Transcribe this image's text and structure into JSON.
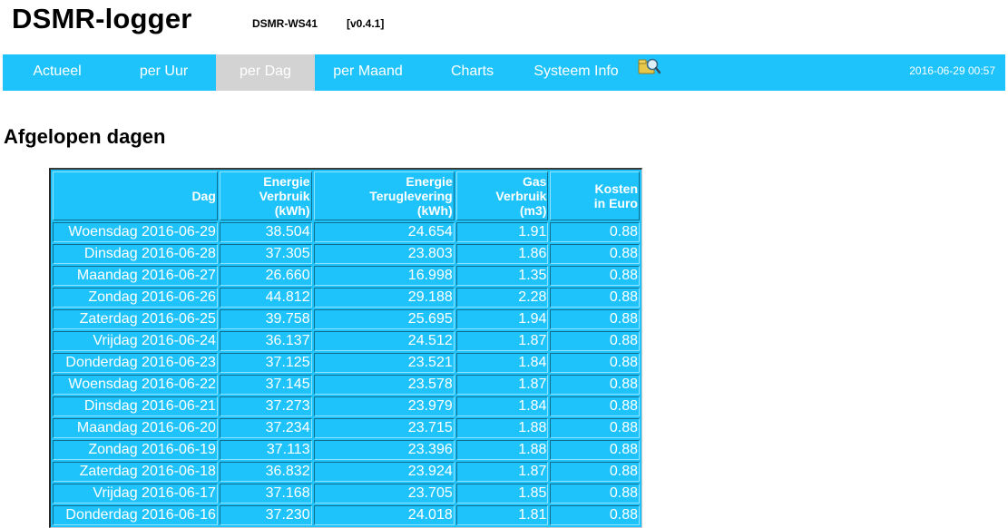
{
  "header": {
    "title": "DSMR-logger",
    "host": "DSMR-WS41",
    "version": "[v0.4.1]"
  },
  "nav": {
    "items": [
      {
        "label": "Actueel",
        "active": false
      },
      {
        "label": "per Uur",
        "active": false
      },
      {
        "label": "per Dag",
        "active": true
      },
      {
        "label": "per Maand",
        "active": false
      },
      {
        "label": "Charts",
        "active": false
      },
      {
        "label": "Systeem Info",
        "active": false
      }
    ],
    "icon": "file-search-icon",
    "datetime": "2016-06-29 00:57"
  },
  "main": {
    "title": "Afgelopen dagen",
    "table": {
      "headers": [
        {
          "lines": [
            "Dag"
          ]
        },
        {
          "lines": [
            "Energie",
            "Verbruik",
            "(kWh)"
          ]
        },
        {
          "lines": [
            "Energie",
            "Teruglevering",
            "(kWh)"
          ]
        },
        {
          "lines": [
            "Gas",
            "Verbruik",
            "(m3)"
          ]
        },
        {
          "lines": [
            "Kosten",
            "in Euro"
          ]
        }
      ],
      "rows": [
        [
          "Woensdag 2016-06-29",
          "38.504",
          "24.654",
          "1.91",
          "0.88"
        ],
        [
          "Dinsdag 2016-06-28",
          "37.305",
          "23.803",
          "1.86",
          "0.88"
        ],
        [
          "Maandag 2016-06-27",
          "26.660",
          "16.998",
          "1.35",
          "0.88"
        ],
        [
          "Zondag 2016-06-26",
          "44.812",
          "29.188",
          "2.28",
          "0.88"
        ],
        [
          "Zaterdag 2016-06-25",
          "39.758",
          "25.695",
          "1.94",
          "0.88"
        ],
        [
          "Vrijdag 2016-06-24",
          "36.137",
          "24.512",
          "1.87",
          "0.88"
        ],
        [
          "Donderdag 2016-06-23",
          "37.125",
          "23.521",
          "1.84",
          "0.88"
        ],
        [
          "Woensdag 2016-06-22",
          "37.145",
          "23.578",
          "1.87",
          "0.88"
        ],
        [
          "Dinsdag 2016-06-21",
          "37.273",
          "23.979",
          "1.84",
          "0.88"
        ],
        [
          "Maandag 2016-06-20",
          "37.234",
          "23.715",
          "1.88",
          "0.88"
        ],
        [
          "Zondag 2016-06-19",
          "37.113",
          "23.396",
          "1.88",
          "0.88"
        ],
        [
          "Zaterdag 2016-06-18",
          "36.832",
          "23.924",
          "1.87",
          "0.88"
        ],
        [
          "Vrijdag 2016-06-17",
          "37.168",
          "23.705",
          "1.85",
          "0.88"
        ],
        [
          "Donderdag 2016-06-16",
          "37.230",
          "24.018",
          "1.81",
          "0.88"
        ]
      ]
    }
  },
  "colors": {
    "accent": "#1ec3fb",
    "active_tab": "#d3d3d3"
  }
}
